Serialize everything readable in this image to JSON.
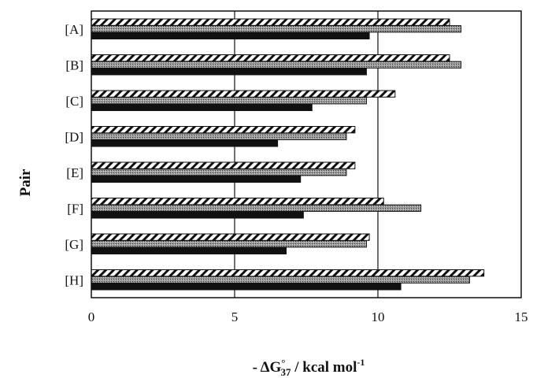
{
  "chart_data": {
    "type": "bar",
    "orientation": "horizontal",
    "title": "",
    "ylabel": "Pair",
    "xlabel_parts": {
      "prefix": "- ΔG",
      "sup": "°",
      "sub": "37",
      "unit": " / kcal mol",
      "unit_sup": "-1"
    },
    "categories": [
      "[A]",
      "[B]",
      "[C]",
      "[D]",
      "[E]",
      "[F]",
      "[G]",
      "[H]"
    ],
    "xlim": [
      0,
      15
    ],
    "xticks": [
      "0",
      "5",
      "10",
      "15"
    ],
    "grid": "vertical gridlines at 5 and 10",
    "legend": "none",
    "series": [
      {
        "pattern": "diagonal hatch",
        "values": [
          12.5,
          12.5,
          10.6,
          9.2,
          9.2,
          10.2,
          9.7,
          13.7
        ]
      },
      {
        "pattern": "gray stipple",
        "values": [
          12.9,
          12.9,
          9.6,
          8.9,
          8.9,
          11.5,
          9.6,
          13.2
        ]
      },
      {
        "pattern": "solid black",
        "values": [
          9.7,
          9.6,
          7.7,
          6.5,
          7.3,
          7.4,
          6.8,
          10.8
        ]
      }
    ],
    "colors": {
      "solid": "#111111",
      "stipple": "#8a8a8a",
      "hatch_line": "#111111"
    }
  }
}
